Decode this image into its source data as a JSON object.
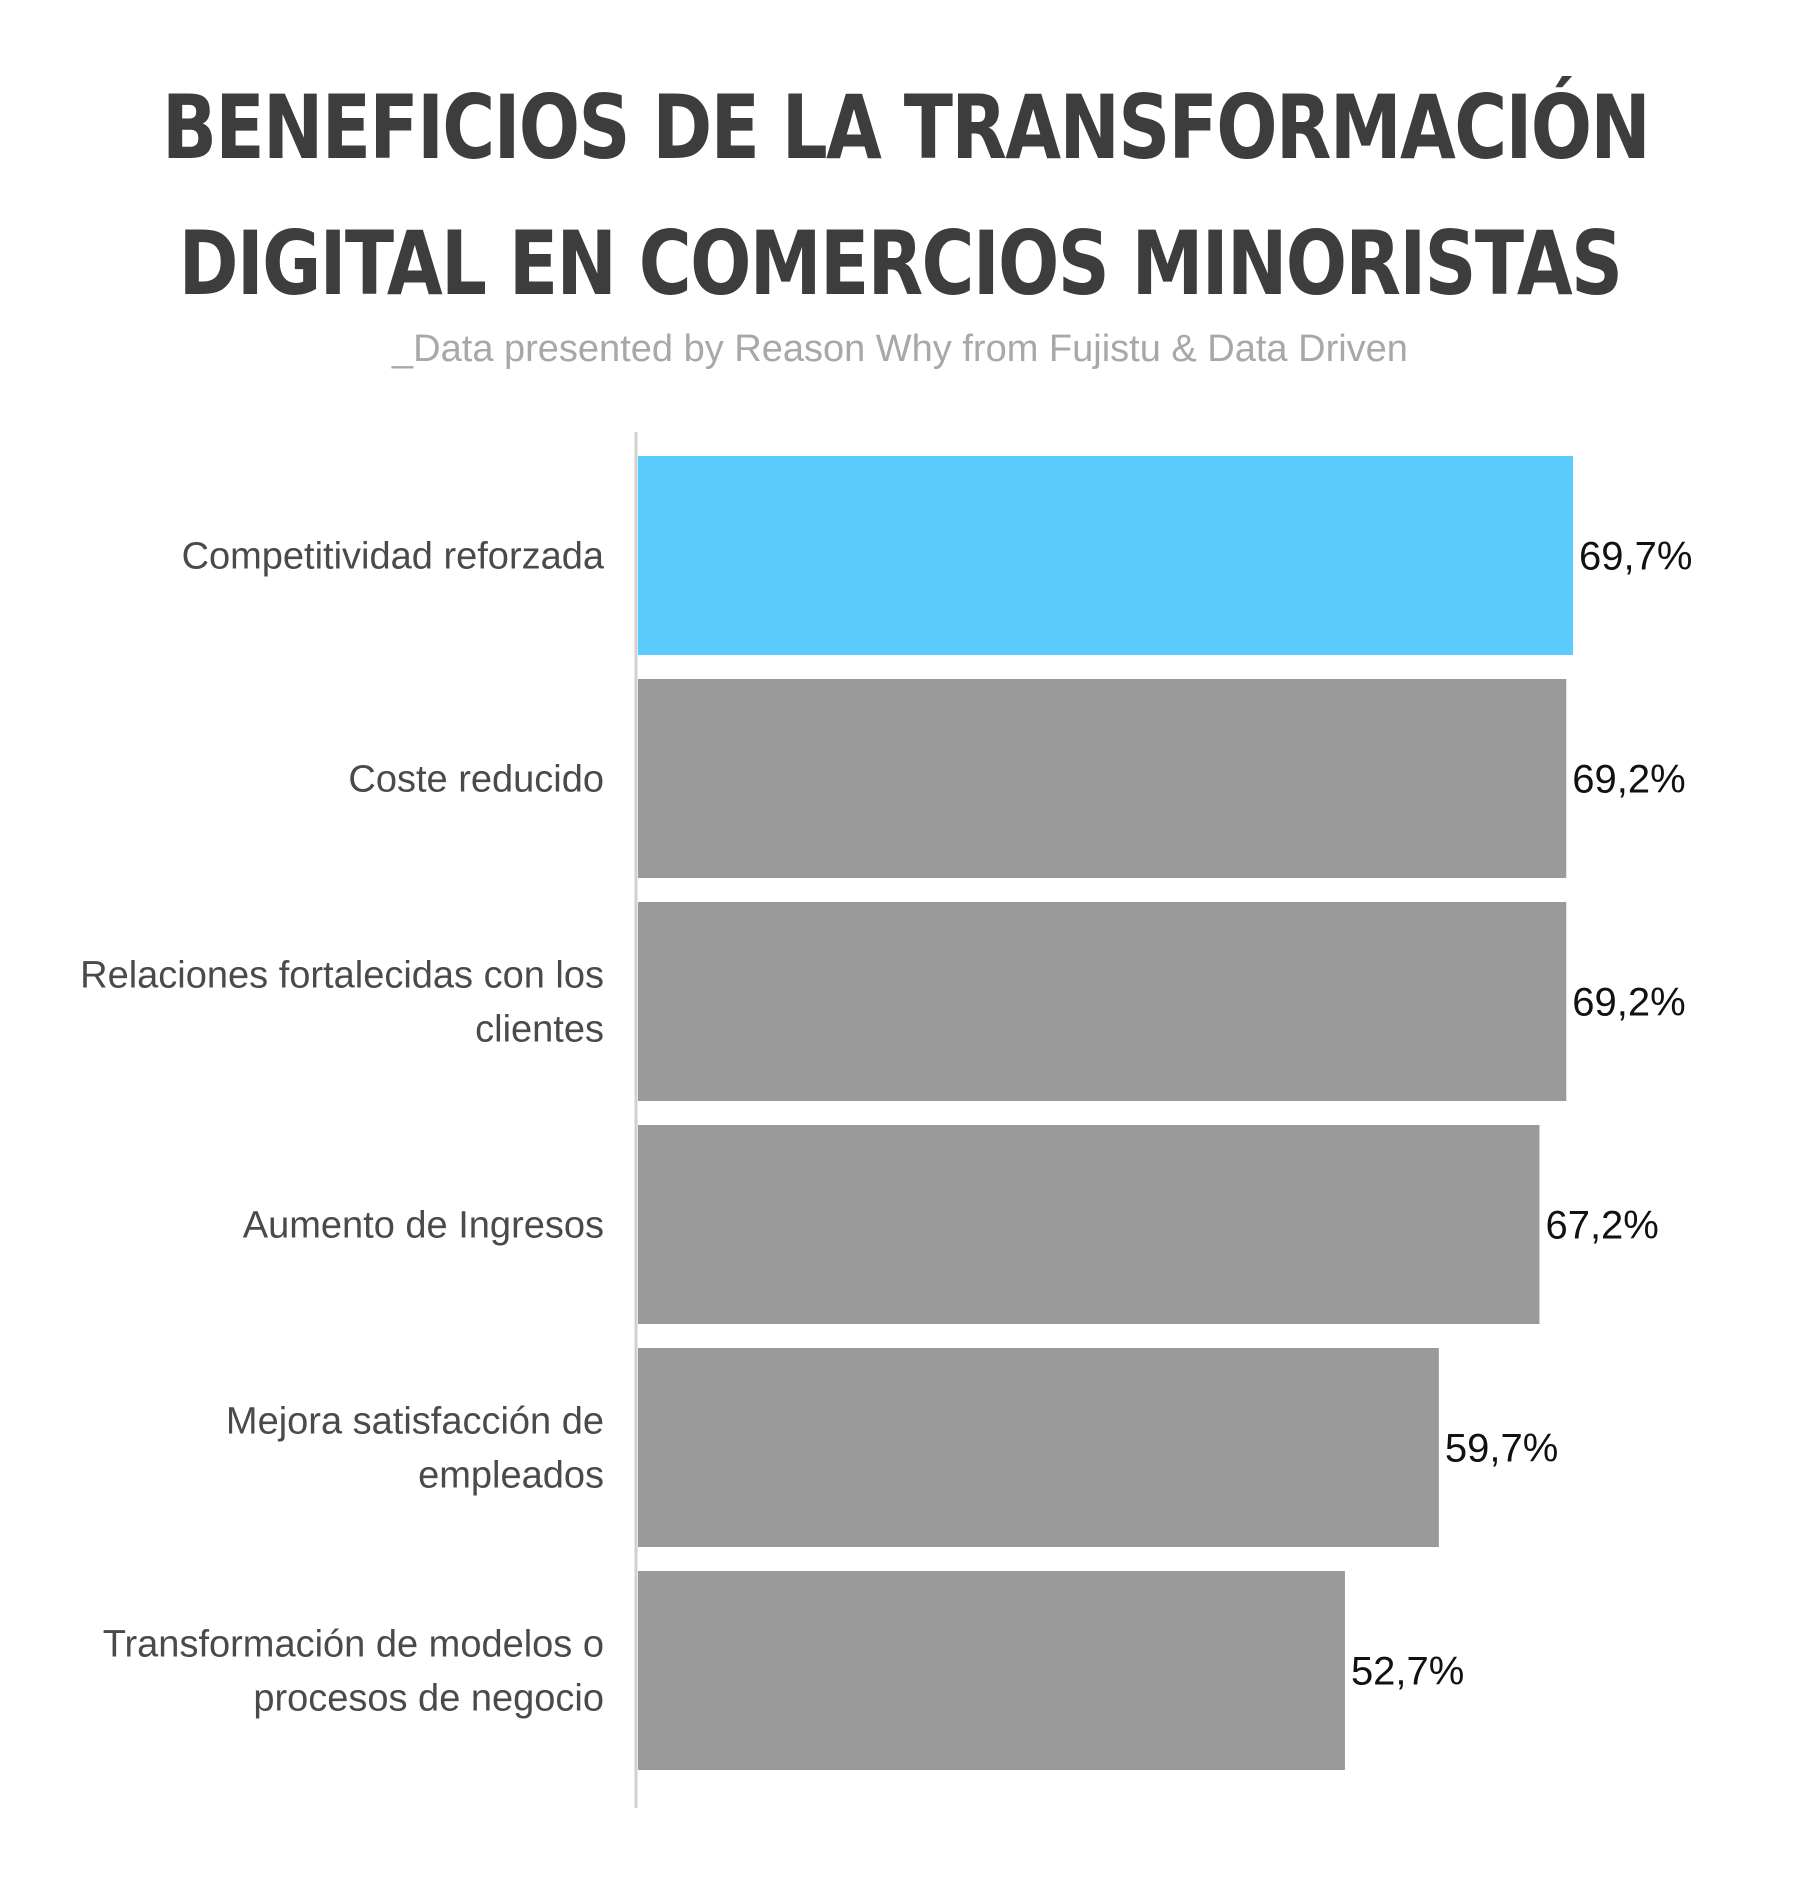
{
  "header": {
    "title_line1": "BENEFICIOS DE LA TRANSFORMACIÓN",
    "title_line2": "DIGITAL EN COMERCIOS MINORISTAS",
    "subtitle": "_Data presented by Reason Why from Fujistu & Data Driven"
  },
  "chart_data": {
    "type": "bar",
    "orientation": "horizontal",
    "title": "BENEFICIOS DE LA TRANSFORMACIÓN DIGITAL EN COMERCIOS MINORISTAS",
    "subtitle": "_Data presented by Reason Why from Fujistu & Data Driven",
    "xlabel": "",
    "ylabel": "",
    "xlim": [
      0,
      72
    ],
    "grid": false,
    "categories": [
      "Competitividad reforzada",
      "Coste reducido",
      "Relaciones fortalecidas con los clientes",
      "Aumento de Ingresos",
      "Mejora satisfacción de empleados",
      "Transformación de modelos o procesos de negocio"
    ],
    "category_lines": [
      [
        "Competitividad reforzada"
      ],
      [
        "Coste reducido"
      ],
      [
        "Relaciones fortalecidas con los",
        "clientes"
      ],
      [
        "Aumento de Ingresos"
      ],
      [
        "Mejora satisfacción de",
        "empleados"
      ],
      [
        "Transformación de modelos o",
        "procesos de negocio"
      ]
    ],
    "values": [
      69.7,
      69.2,
      69.2,
      67.2,
      59.7,
      52.7
    ],
    "value_labels": [
      "69,7%",
      "69,2%",
      "69,2%",
      "67,2%",
      "59,7%",
      "52,7%"
    ],
    "colors": [
      "#5ccbfd",
      "#9a9a9a",
      "#9a9a9a",
      "#9a9a9a",
      "#9a9a9a",
      "#9a9a9a"
    ],
    "axis_color": "#d0d0d0"
  }
}
